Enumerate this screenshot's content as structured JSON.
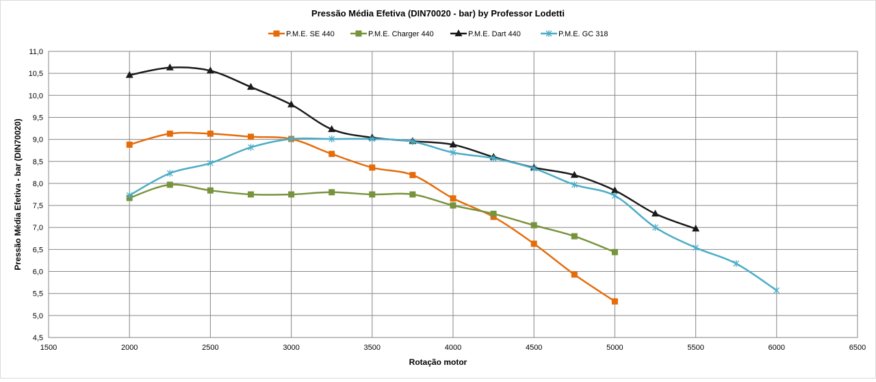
{
  "chart_data": {
    "type": "line",
    "title": "Pressão Média Efetiva (DIN70020 - bar) by Professor Lodetti",
    "xlabel": "Rotação motor",
    "ylabel": "Pressão Média Efetiva - bar (DIN70020)",
    "xlim": [
      1500,
      6500
    ],
    "ylim": [
      4.5,
      11.0
    ],
    "xticks": [
      "1500",
      "2000",
      "2500",
      "3000",
      "3500",
      "4000",
      "4500",
      "5000",
      "5500",
      "6000",
      "6500"
    ],
    "yticks": [
      "4,5",
      "5,0",
      "5,5",
      "6,0",
      "6,5",
      "7,0",
      "7,5",
      "8,0",
      "8,5",
      "9,0",
      "9,5",
      "10,0",
      "10,5",
      "11,0"
    ],
    "grid": true,
    "legend_position": "top",
    "series": [
      {
        "name": "P.M.E. SE 440",
        "color": "#E46C0A",
        "marker": "square",
        "x": [
          2000,
          2250,
          2500,
          2750,
          3000,
          3250,
          3500,
          3750,
          4000,
          4250,
          4500,
          4750,
          5000
        ],
        "values": [
          8.88,
          9.13,
          9.13,
          9.06,
          9.01,
          8.67,
          8.36,
          8.19,
          7.66,
          7.24,
          6.63,
          5.93,
          5.32
        ]
      },
      {
        "name": "P.M.E. Charger 440",
        "color": "#77933C",
        "marker": "square",
        "x": [
          2000,
          2250,
          2500,
          2750,
          3000,
          3250,
          3500,
          3750,
          4000,
          4250,
          4500,
          4750,
          5000
        ],
        "values": [
          7.67,
          7.97,
          7.84,
          7.75,
          7.75,
          7.8,
          7.75,
          7.75,
          7.5,
          7.31,
          7.05,
          6.8,
          6.44
        ]
      },
      {
        "name": "P.M.E. Dart 440",
        "color": "#1A1A1A",
        "marker": "triangle",
        "x": [
          2000,
          2250,
          2500,
          2750,
          3000,
          3250,
          3500,
          3750,
          4000,
          4250,
          4500,
          4750,
          5000,
          5250,
          5500
        ],
        "values": [
          10.46,
          10.63,
          10.56,
          10.19,
          9.79,
          9.23,
          9.04,
          8.96,
          8.88,
          8.6,
          8.36,
          8.19,
          7.84,
          7.31,
          6.97
        ]
      },
      {
        "name": "P.M.E. GC 318",
        "color": "#4BACC6",
        "marker": "star",
        "x": [
          2000,
          2250,
          2500,
          2750,
          3000,
          3250,
          3500,
          3750,
          4000,
          4250,
          4500,
          4750,
          5000,
          5250,
          5500,
          5750,
          6000
        ],
        "values": [
          7.73,
          8.23,
          8.46,
          8.82,
          9.01,
          9.01,
          9.01,
          8.95,
          8.7,
          8.57,
          8.34,
          7.97,
          7.72,
          7.0,
          6.54,
          6.18,
          5.57
        ]
      }
    ]
  }
}
